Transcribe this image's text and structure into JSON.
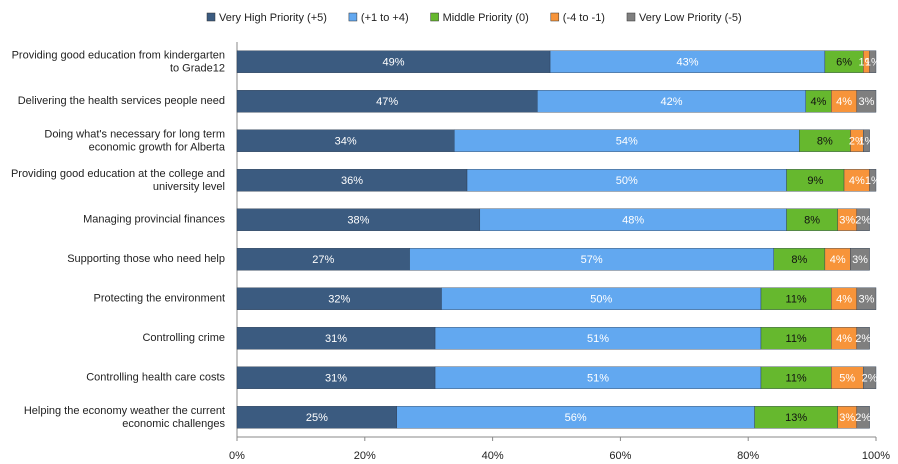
{
  "chart_data": {
    "type": "stacked-bar-horizontal",
    "categories": [
      "Providing good education from kindergarten to Grade12",
      "Delivering the health services people need",
      "Doing what's necessary for long term economic growth for Alberta",
      "Providing good education at the college and university level",
      "Managing provincial finances",
      "Supporting those who need help",
      "Protecting the environment",
      "Controlling crime",
      "Controlling health care costs",
      "Helping the economy weather the current economic challenges"
    ],
    "series": [
      {
        "name": "Very High Priority (+5)",
        "color": "#3b5b80",
        "values": [
          49,
          47,
          34,
          36,
          38,
          27,
          32,
          31,
          31,
          25
        ],
        "value_labels": [
          "49%",
          "47%",
          "34%",
          "36%",
          "38%",
          "27%",
          "32%",
          "31%",
          "31%",
          "25%"
        ]
      },
      {
        "name": "(+1 to +4)",
        "color": "#62a8f0",
        "values": [
          43,
          42,
          54,
          50,
          48,
          57,
          50,
          51,
          51,
          56
        ],
        "value_labels": [
          "43%",
          "42%",
          "54%",
          "50%",
          "48%",
          "57%",
          "50%",
          "51%",
          "51%",
          "56%"
        ]
      },
      {
        "name": "Middle Priority (0)",
        "color": "#66b82e",
        "values": [
          6,
          4,
          8,
          9,
          8,
          8,
          11,
          11,
          11,
          13
        ],
        "value_labels": [
          "6%",
          "4%",
          "8%",
          "9%",
          "8%",
          "8%",
          "11%",
          "11%",
          "11%",
          "13%"
        ]
      },
      {
        "name": "(-4 to -1)",
        "color": "#f7943a",
        "values": [
          1,
          4,
          2,
          4,
          3,
          4,
          4,
          4,
          5,
          3
        ],
        "value_labels": [
          "1%",
          "4%",
          "2%",
          "4%",
          "3%",
          "4%",
          "4%",
          "4%",
          "5%",
          "3%"
        ]
      },
      {
        "name": "Very Low Priority (-5)",
        "color": "#7f7f7f",
        "values": [
          1,
          3,
          1,
          1,
          2,
          3,
          3,
          2,
          2,
          2
        ],
        "value_labels": [
          "1%",
          "3%",
          "1%",
          "1%",
          "2%",
          "3%",
          "3%",
          "2%",
          "2%",
          "2%"
        ]
      }
    ],
    "xlim": [
      0,
      100
    ],
    "xticks": [
      {
        "value": 0,
        "label": "0%"
      },
      {
        "value": 20,
        "label": "20%"
      },
      {
        "value": 40,
        "label": "40%"
      },
      {
        "value": 60,
        "label": "60%"
      },
      {
        "value": 80,
        "label": "80%"
      },
      {
        "value": 100,
        "label": "100%"
      }
    ]
  }
}
